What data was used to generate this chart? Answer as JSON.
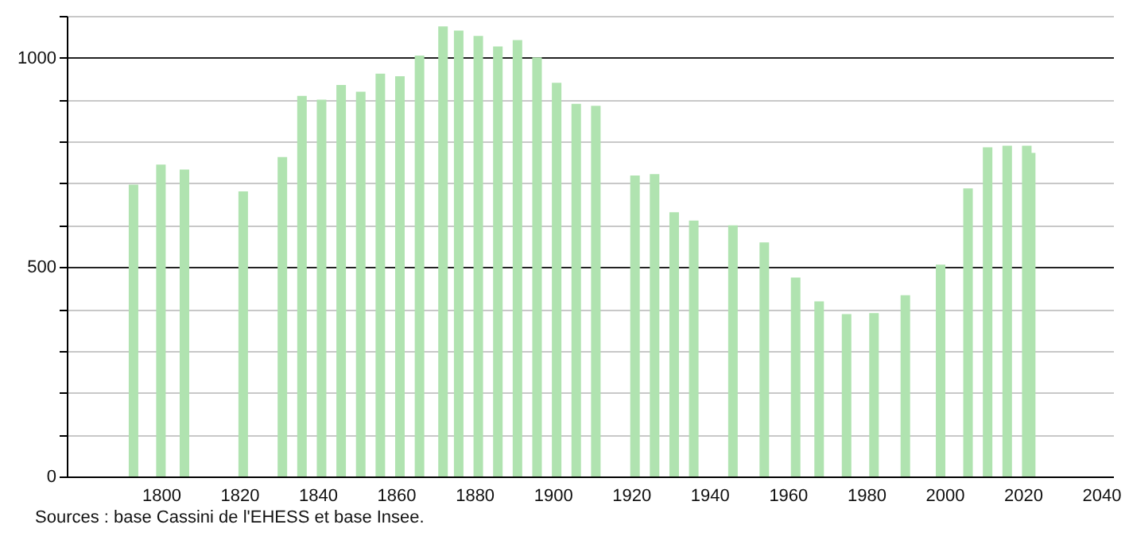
{
  "chart_data": {
    "type": "bar",
    "x": [
      1793,
      1800,
      1806,
      1821,
      1831,
      1836,
      1841,
      1846,
      1851,
      1856,
      1861,
      1866,
      1872,
      1876,
      1881,
      1886,
      1891,
      1896,
      1901,
      1906,
      1911,
      1921,
      1926,
      1931,
      1936,
      1946,
      1954,
      1962,
      1968,
      1975,
      1982,
      1990,
      1999,
      2006,
      2011,
      2016,
      2021,
      2022
    ],
    "series": [
      {
        "color": "#b0e3b0",
        "values": [
          697,
          745,
          733,
          681,
          763,
          909,
          900,
          935,
          919,
          962,
          956,
          1005,
          1075,
          1065,
          1052,
          1027,
          1042,
          1001,
          940,
          890,
          885,
          719,
          722,
          631,
          611,
          600,
          559,
          475,
          418,
          388,
          390,
          433,
          506,
          688,
          786,
          790,
          790,
          773
        ]
      }
    ],
    "xlim": [
      1778,
      2041
    ],
    "xticks": [
      1800,
      1820,
      1840,
      1860,
      1880,
      1900,
      1920,
      1940,
      1960,
      1980,
      2000,
      2020,
      2040
    ],
    "ylim": [
      0,
      1100
    ],
    "yticks": [
      0,
      {
        "value": 100,
        "label": null
      },
      {
        "value": 200,
        "label": null
      },
      {
        "value": 300,
        "label": null
      },
      {
        "value": 400,
        "label": null
      },
      500,
      {
        "value": 600,
        "label": null
      },
      {
        "value": 700,
        "label": null
      },
      {
        "value": 800,
        "label": null
      },
      {
        "value": 900,
        "label": null
      },
      1000,
      {
        "value": 1100,
        "label": null
      }
    ],
    "grid": "y",
    "annotations": [
      "Sources : base Cassini de l'EHESS et base Insee."
    ]
  }
}
